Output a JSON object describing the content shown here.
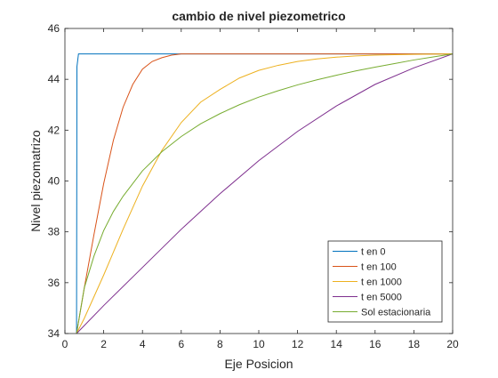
{
  "chart_data": {
    "type": "line",
    "title": "cambio de nivel piezometrico",
    "xlabel": "Eje Posicion",
    "ylabel": "Nivel piezomatrizo",
    "xlim": [
      0,
      20
    ],
    "ylim": [
      34,
      46
    ],
    "xticks": [
      "0",
      "2",
      "4",
      "6",
      "8",
      "10",
      "12",
      "14",
      "16",
      "18",
      "20"
    ],
    "yticks": [
      "34",
      "36",
      "38",
      "40",
      "42",
      "44",
      "46"
    ],
    "grid": false,
    "legend_position": "bottom-right",
    "series": [
      {
        "name": "t en 0",
        "color": "#0072BD",
        "x": [
          0.6,
          0.62,
          0.7,
          20
        ],
        "y": [
          34,
          44.5,
          45,
          45
        ]
      },
      {
        "name": "t en 100",
        "color": "#D95319",
        "x": [
          0.6,
          1,
          1.5,
          2,
          2.5,
          3,
          3.5,
          4,
          4.5,
          5,
          5.5,
          6,
          7,
          8,
          10,
          20
        ],
        "y": [
          34,
          35.8,
          37.9,
          39.9,
          41.6,
          42.9,
          43.8,
          44.4,
          44.7,
          44.85,
          44.95,
          45,
          45,
          45,
          45,
          45
        ]
      },
      {
        "name": "t en 1000",
        "color": "#EDB120",
        "x": [
          0.6,
          1,
          2,
          3,
          4,
          5,
          6,
          7,
          8,
          9,
          10,
          11,
          12,
          13,
          14,
          15,
          16,
          17,
          18,
          19,
          20
        ],
        "y": [
          34,
          34.6,
          36.3,
          38.1,
          39.8,
          41.2,
          42.3,
          43.1,
          43.6,
          44.05,
          44.35,
          44.55,
          44.7,
          44.8,
          44.87,
          44.92,
          44.95,
          44.97,
          44.98,
          44.99,
          45
        ]
      },
      {
        "name": "t en 5000",
        "color": "#7E2F8E",
        "x": [
          0.6,
          2,
          4,
          6,
          8,
          10,
          12,
          14,
          16,
          18,
          20
        ],
        "y": [
          34,
          35.1,
          36.6,
          38.1,
          39.5,
          40.8,
          41.95,
          42.95,
          43.8,
          44.45,
          45
        ]
      },
      {
        "name": "Sol estacionaria",
        "color": "#77AC30",
        "x": [
          0.6,
          1,
          1.5,
          2,
          2.5,
          3,
          4,
          5,
          6,
          7,
          8,
          9,
          10,
          11,
          12,
          13,
          14,
          15,
          16,
          17,
          18,
          19,
          20
        ],
        "y": [
          34,
          35.8,
          37.05,
          38.05,
          38.8,
          39.4,
          40.4,
          41.15,
          41.75,
          42.25,
          42.65,
          43.0,
          43.3,
          43.55,
          43.78,
          43.98,
          44.16,
          44.33,
          44.48,
          44.62,
          44.76,
          44.88,
          45
        ]
      }
    ]
  }
}
